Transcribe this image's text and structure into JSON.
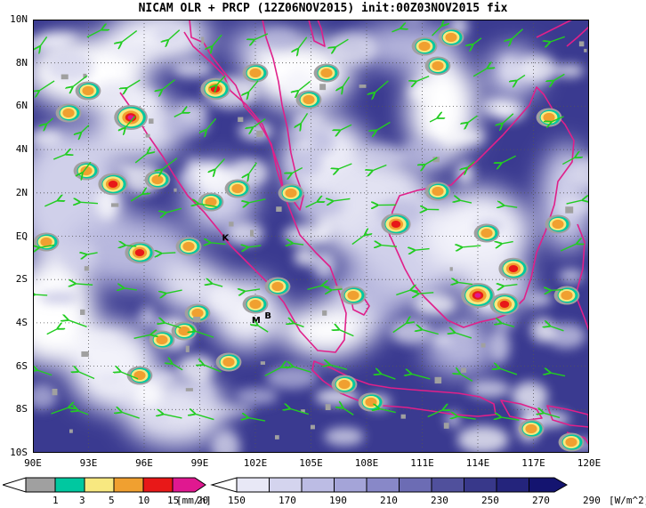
{
  "title": "NICAM OLR + PRCP (12Z06NOV2015) init:00Z03NOV2015 fix",
  "map": {
    "lon_range": [
      90,
      120
    ],
    "lat_range": [
      -10,
      10
    ],
    "lat_labels": [
      "10N",
      "8N",
      "6N",
      "4N",
      "2N",
      "EQ",
      "2S",
      "4S",
      "6S",
      "8S",
      "10S"
    ],
    "lon_labels": [
      "90E",
      "93E",
      "96E",
      "99E",
      "102E",
      "105E",
      "108E",
      "111E",
      "114E",
      "117E",
      "120E"
    ],
    "coast_color": "#e0208a",
    "wind_vector_color": "#22cc22",
    "grid_style": "dotted",
    "station_markers": [
      {
        "text": "K",
        "lon": 100.2,
        "lat": -0.2
      },
      {
        "text": "M",
        "lon": 101.8,
        "lat": -4.0
      },
      {
        "text": "B",
        "lon": 102.5,
        "lat": -3.8
      }
    ]
  },
  "precip_legend": {
    "labels": [
      "1",
      "3",
      "5",
      "10",
      "15",
      "20"
    ],
    "colors": [
      "#a0a0a0",
      "#00c8a0",
      "#f8e880",
      "#f0a030",
      "#e81818",
      "#e01890"
    ],
    "unit": "[mm/h]"
  },
  "olr_legend": {
    "labels": [
      "150",
      "170",
      "190",
      "210",
      "230",
      "250",
      "270",
      "290"
    ],
    "colors": [
      "#ffffff",
      "#e8e8f6",
      "#d4d4ee",
      "#bcbce4",
      "#a4a4d8",
      "#8888c8",
      "#6c6cb4",
      "#50509c",
      "#38388a",
      "#24247c",
      "#141470"
    ],
    "unit": "[W/m^2]"
  }
}
